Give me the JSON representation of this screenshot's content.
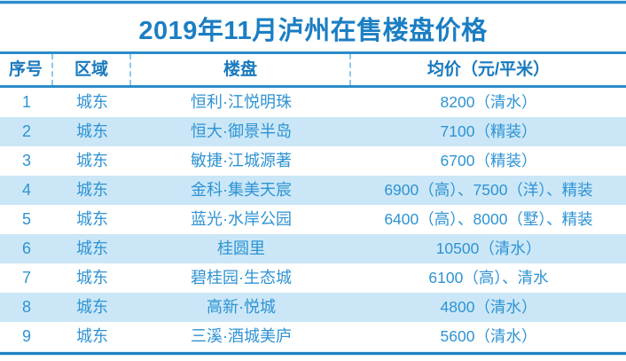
{
  "chart_data": {
    "type": "table",
    "title": "2019年11月泸州在售楼盘价格",
    "columns": [
      "序号",
      "区域",
      "楼盘",
      "均价（元/平米）"
    ],
    "rows": [
      [
        "1",
        "城东",
        "恒利·江悦明珠",
        "8200（清水）"
      ],
      [
        "2",
        "城东",
        "恒大·御景半岛",
        "7100（精装）"
      ],
      [
        "3",
        "城东",
        "敏捷·江城源著",
        "6700（精装）"
      ],
      [
        "4",
        "城东",
        "金科·集美天宸",
        "6900（高）、7500（洋）、精装"
      ],
      [
        "5",
        "城东",
        "蓝光·水岸公园",
        "6400（高）、8000（墅）、精装"
      ],
      [
        "6",
        "城东",
        "桂圆里",
        "10500（清水）"
      ],
      [
        "7",
        "城东",
        "碧桂园·生态城",
        "6100（高）、清水"
      ],
      [
        "8",
        "城东",
        "高新·悦城",
        "4800（清水）"
      ],
      [
        "9",
        "城东",
        "三溪·酒城美庐",
        "5600（清水）"
      ]
    ],
    "layout": {
      "header_separator_style": "dashed",
      "row_striping": "alternate, starting white",
      "grid": "horizontal rules above/below header and at table bottom only"
    }
  },
  "colors": {
    "title_text": "#1b7ec3",
    "header_text": "#1879be",
    "body_text": "#2e93d3",
    "rule_blue": "#2b8ccb",
    "bottom_rule_blue": "#1e82c4",
    "row_stripe_bg": "#cbe7f7",
    "dashed_separator": "#8fc8ea",
    "background": "#ffffff"
  }
}
